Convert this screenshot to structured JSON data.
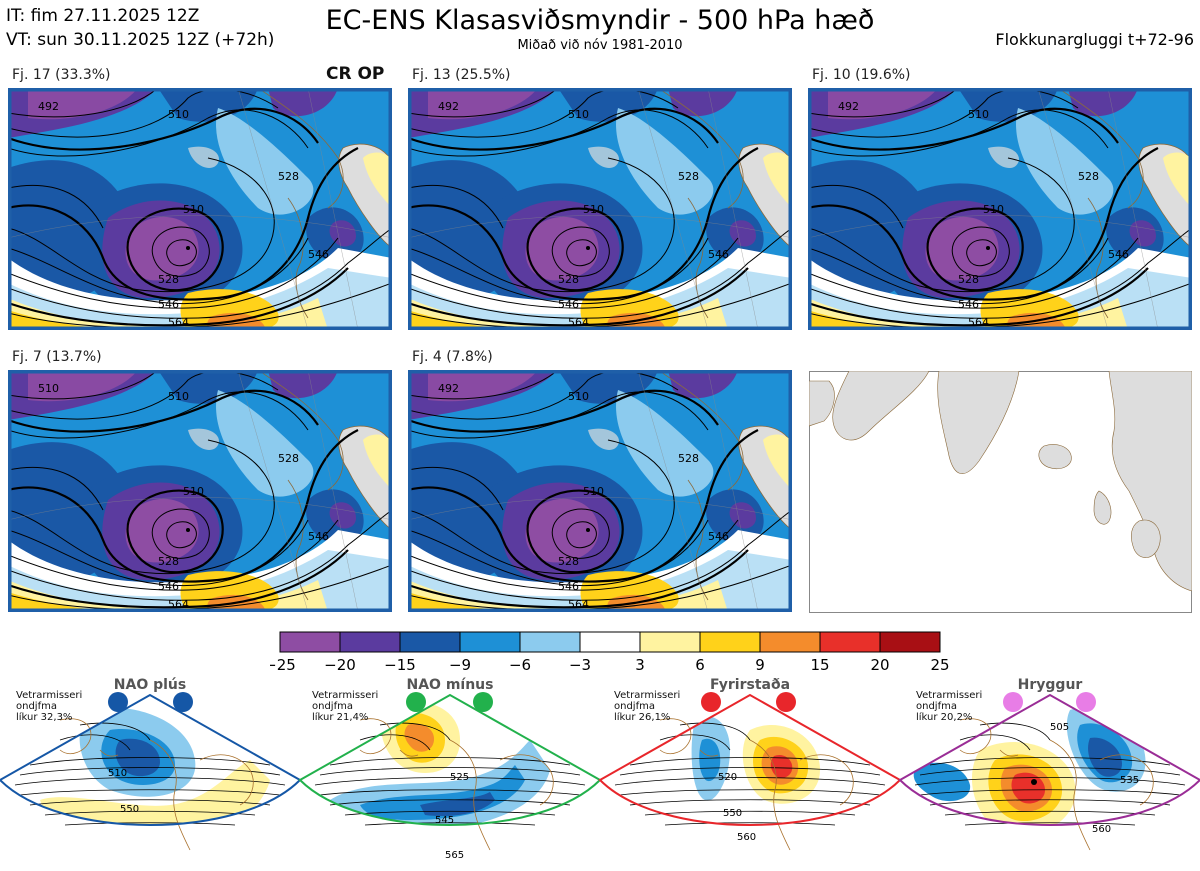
{
  "header": {
    "it_line": "IT: fim 27.11.2025 12Z",
    "vt_line": "VT: sun 30.11.2025 12Z  (+72h)",
    "title": "EC-ENS Klasasviðsmyndir - 500 hPa hæð",
    "subtitle": "Miðað við nóv 1981-2010",
    "window": "Flokkunargluggi t+72-96"
  },
  "colors": {
    "frame": "#1f5fa8",
    "map_frame": "#888888",
    "land_outline": "#8b6a3c",
    "land_fill": "#dddddd"
  },
  "panels": [
    {
      "label": "Fj. 17 (33.3%)",
      "extra": "CR OP",
      "contours": [
        "492",
        "510",
        "510",
        "528",
        "528",
        "546",
        "546",
        "564"
      ]
    },
    {
      "label": "Fj. 13 (25.5%)",
      "extra": "",
      "contours": [
        "492",
        "510",
        "510",
        "528",
        "528",
        "546",
        "546",
        "564"
      ]
    },
    {
      "label": "Fj. 10 (19.6%)",
      "extra": "",
      "contours": [
        "492",
        "510",
        "510",
        "528",
        "528",
        "546",
        "546",
        "564"
      ]
    },
    {
      "label": "Fj. 7 (13.7%)",
      "extra": "",
      "contours": [
        "510",
        "510",
        "510",
        "528",
        "528",
        "546",
        "546",
        "564"
      ]
    },
    {
      "label": "Fj. 4 (7.8%)",
      "extra": "",
      "contours": [
        "492",
        "510",
        "510",
        "528",
        "528",
        "546",
        "546",
        "564"
      ]
    }
  ],
  "colorbar": {
    "ticks": [
      "−25",
      "−20",
      "−15",
      "−9",
      "−6",
      "−3",
      "3",
      "6",
      "9",
      "15",
      "20",
      "25"
    ],
    "colors": [
      "#8e4da3",
      "#5b3b9f",
      "#1a58a6",
      "#1e90d6",
      "#8ccbee",
      "#ffffff",
      "#fff3a0",
      "#ffd21a",
      "#f48c2c",
      "#e8302a",
      "#a80f14"
    ]
  },
  "regimes": [
    {
      "title": "NAO plús",
      "season": "Vetrarmisseri",
      "mean": "ondjfma",
      "prob": "líkur 32,3%",
      "color": "#1557a6",
      "contours": [
        "510",
        "550"
      ]
    },
    {
      "title": "NAO mínus",
      "season": "Vetrarmisseri",
      "mean": "ondjfma",
      "prob": "líkur 21,4%",
      "color": "#22b14c",
      "contours": [
        "525",
        "545",
        "565"
      ]
    },
    {
      "title": "Fyrirstaða",
      "season": "Vetrarmisseri",
      "mean": "ondjfma",
      "prob": "líkur 26,1%",
      "color": "#e8262b",
      "contours": [
        "520",
        "550",
        "560"
      ]
    },
    {
      "title": "Hryggur",
      "season": "Vetrarmisseri",
      "mean": "ondjfma",
      "prob": "líkur 20,2%",
      "color": "#9a2d96",
      "contours": [
        "505",
        "535",
        "560"
      ]
    }
  ]
}
